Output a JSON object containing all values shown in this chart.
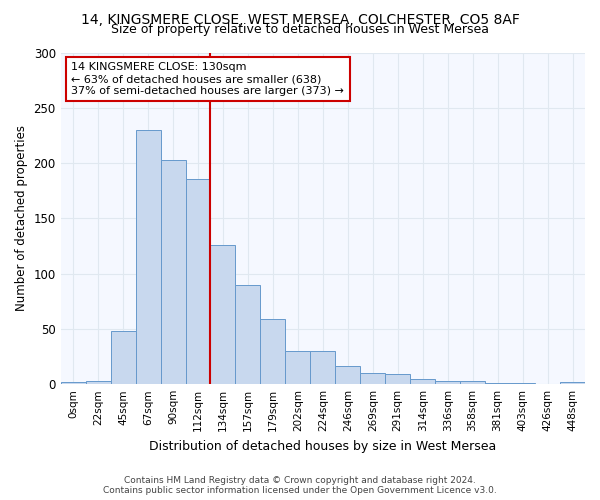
{
  "title_line1": "14, KINGSMERE CLOSE, WEST MERSEA, COLCHESTER, CO5 8AF",
  "title_line2": "Size of property relative to detached houses in West Mersea",
  "xlabel": "Distribution of detached houses by size in West Mersea",
  "ylabel": "Number of detached properties",
  "bin_labels": [
    "0sqm",
    "22sqm",
    "45sqm",
    "67sqm",
    "90sqm",
    "112sqm",
    "134sqm",
    "157sqm",
    "179sqm",
    "202sqm",
    "224sqm",
    "246sqm",
    "269sqm",
    "291sqm",
    "314sqm",
    "336sqm",
    "358sqm",
    "381sqm",
    "403sqm",
    "426sqm",
    "448sqm"
  ],
  "bar_values": [
    2,
    3,
    48,
    230,
    203,
    186,
    126,
    90,
    59,
    30,
    30,
    16,
    10,
    9,
    5,
    3,
    3,
    1,
    1,
    0,
    2
  ],
  "bar_color": "#c8d8ee",
  "bar_edge_color": "#6699cc",
  "vline_x_index": 6,
  "vline_color": "#cc0000",
  "annotation_text": "14 KINGSMERE CLOSE: 130sqm\n← 63% of detached houses are smaller (638)\n37% of semi-detached houses are larger (373) →",
  "annotation_box_facecolor": "#ffffff",
  "annotation_box_edgecolor": "#cc0000",
  "ylim": [
    0,
    300
  ],
  "yticks": [
    0,
    50,
    100,
    150,
    200,
    250,
    300
  ],
  "footer_line1": "Contains HM Land Registry data © Crown copyright and database right 2024.",
  "footer_line2": "Contains public sector information licensed under the Open Government Licence v3.0.",
  "bg_color": "#ffffff",
  "plot_bg_color": "#f5f8ff",
  "grid_color": "#e0e8f0"
}
